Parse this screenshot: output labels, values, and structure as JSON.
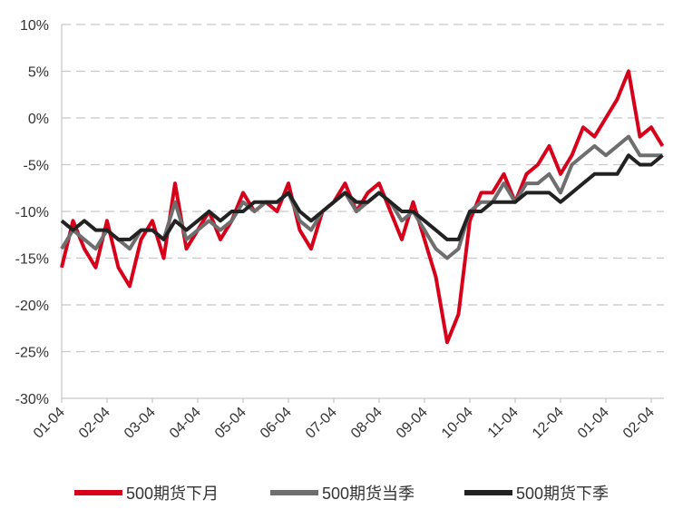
{
  "chart_data": {
    "type": "line",
    "categories": [
      "01-04",
      null,
      null,
      null,
      "02-04",
      null,
      null,
      null,
      "03-04",
      null,
      null,
      null,
      "04-04",
      null,
      null,
      null,
      "05-04",
      null,
      null,
      null,
      "06-04",
      null,
      null,
      null,
      "07-04",
      null,
      null,
      null,
      "08-04",
      null,
      null,
      null,
      "09-04",
      null,
      null,
      null,
      "10-04",
      null,
      null,
      null,
      "11-04",
      null,
      null,
      null,
      "12-04",
      null,
      null,
      null,
      "01-04",
      null,
      null,
      null,
      "02-04",
      null
    ],
    "series": [
      {
        "name": "500期货下月",
        "color": "#d7001b",
        "values": [
          -16,
          -11,
          -14,
          -16,
          -11,
          -16,
          -18,
          -13,
          -11,
          -15,
          -7,
          -14,
          -12,
          -10,
          -13,
          -11,
          -8,
          -10,
          -9,
          -10,
          -7,
          -12,
          -14,
          -10,
          -9,
          -7,
          -10,
          -8,
          -7,
          -10,
          -13,
          -9,
          -13,
          -17,
          -24,
          -21,
          -11,
          -8,
          -8,
          -6,
          -9,
          -6,
          -5,
          -3,
          -6,
          -4,
          -1,
          -2,
          0,
          2,
          5,
          -2,
          -1,
          -3
        ]
      },
      {
        "name": "500期货当季",
        "color": "#6e6e6e",
        "values": [
          -14,
          -12,
          -13,
          -14,
          -12,
          -13,
          -14,
          -12,
          -12,
          -13,
          -9,
          -13,
          -12,
          -11,
          -12,
          -11,
          -9,
          -10,
          -9,
          -9,
          -8,
          -11,
          -12,
          -10,
          -9,
          -8,
          -10,
          -9,
          -8,
          -9,
          -11,
          -10,
          -12,
          -14,
          -15,
          -14,
          -10,
          -9,
          -9,
          -7,
          -9,
          -7,
          -7,
          -6,
          -8,
          -5,
          -4,
          -3,
          -4,
          -3,
          -2,
          -4,
          -4,
          -4
        ]
      },
      {
        "name": "500期货下季",
        "color": "#222222",
        "values": [
          -11,
          -12,
          -11,
          -12,
          -12,
          -13,
          -13,
          -12,
          -12,
          -13,
          -11,
          -12,
          -11,
          -10,
          -11,
          -10,
          -10,
          -9,
          -9,
          -9,
          -8,
          -10,
          -11,
          -10,
          -9,
          -8,
          -9,
          -9,
          -8,
          -9,
          -10,
          -10,
          -11,
          -12,
          -13,
          -13,
          -10,
          -10,
          -9,
          -9,
          -9,
          -8,
          -8,
          -8,
          -9,
          -8,
          -7,
          -6,
          -6,
          -6,
          -4,
          -5,
          -5,
          -4
        ]
      }
    ],
    "ylim": [
      -30,
      10
    ],
    "yticks": [
      {
        "value": -30,
        "label": "-30%"
      },
      {
        "value": -25,
        "label": "-25%"
      },
      {
        "value": -20,
        "label": "-20%"
      },
      {
        "value": -15,
        "label": "-15%"
      },
      {
        "value": -10,
        "label": "-10%"
      },
      {
        "value": -5,
        "label": "-5%"
      },
      {
        "value": 0,
        "label": "0%"
      },
      {
        "value": 5,
        "label": "5%"
      },
      {
        "value": 10,
        "label": "10%"
      }
    ],
    "grid": true
  }
}
